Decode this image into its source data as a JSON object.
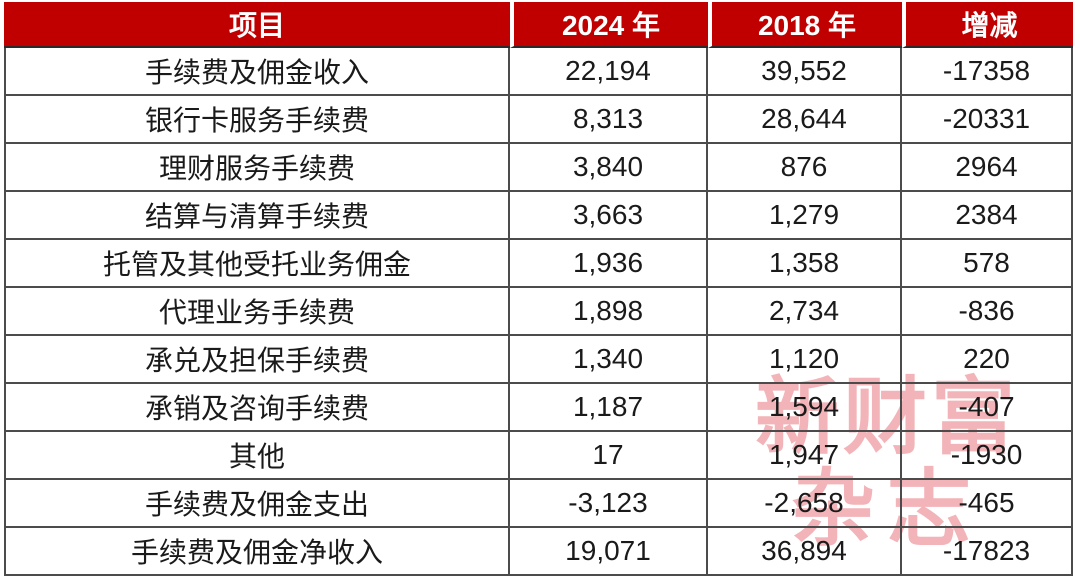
{
  "chart_data": {
    "type": "table",
    "columns": [
      "项目",
      "2024 年",
      "2018 年",
      "增减"
    ],
    "rows": [
      [
        "手续费及佣金收入",
        "22,194",
        "39,552",
        "-17358"
      ],
      [
        "银行卡服务手续费",
        "8,313",
        "28,644",
        "-20331"
      ],
      [
        "理财服务手续费",
        "3,840",
        "876",
        "2964"
      ],
      [
        "结算与清算手续费",
        "3,663",
        "1,279",
        "2384"
      ],
      [
        "托管及其他受托业务佣金",
        "1,936",
        "1,358",
        "578"
      ],
      [
        "代理业务手续费",
        "1,898",
        "2,734",
        "-836"
      ],
      [
        "承兑及担保手续费",
        "1,340",
        "1,120",
        "220"
      ],
      [
        "承销及咨询手续费",
        "1,187",
        "1,594",
        "-407"
      ],
      [
        "其他",
        "17",
        "1,947",
        "-1930"
      ],
      [
        "手续费及佣金支出",
        "-3,123",
        "-2,658",
        "-465"
      ],
      [
        "手续费及佣金净收入",
        "19,071",
        "36,894",
        "-17823"
      ]
    ]
  },
  "watermark": {
    "line1": "新财富",
    "line2": "杂志"
  },
  "colors": {
    "header_bg": "#c00000",
    "header_text": "#ffffff",
    "body_text": "#1a1a1a",
    "border": "#4b4b4b",
    "watermark": "#f2b4b8"
  }
}
